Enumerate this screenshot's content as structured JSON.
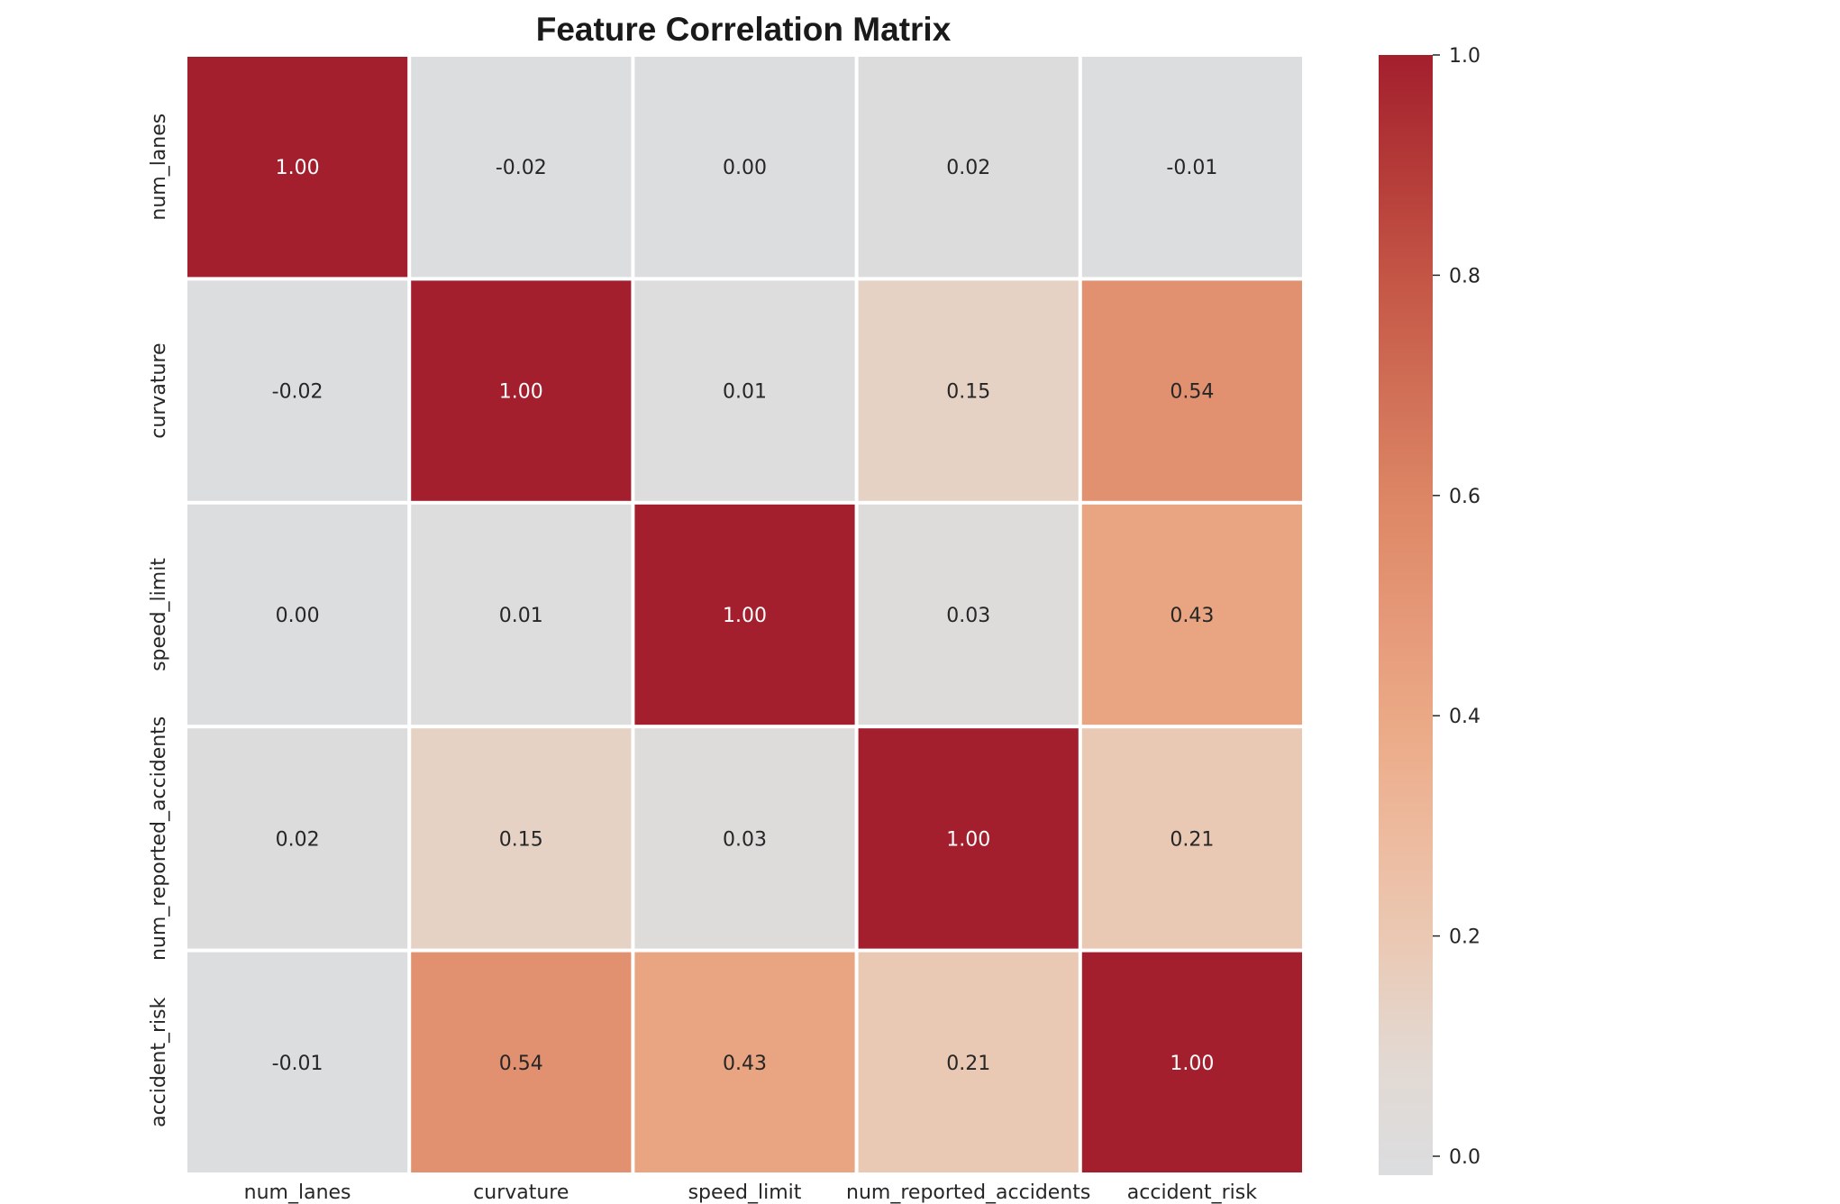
{
  "chart_data": {
    "type": "heatmap",
    "title": "Feature Correlation Matrix",
    "x_labels": [
      "num_lanes",
      "curvature",
      "speed_limit",
      "num_reported_accidents",
      "accident_risk"
    ],
    "y_labels": [
      "num_lanes",
      "curvature",
      "speed_limit",
      "num_reported_accidents",
      "accident_risk"
    ],
    "values": [
      [
        1.0,
        -0.02,
        0.0,
        0.02,
        -0.01
      ],
      [
        -0.02,
        1.0,
        0.01,
        0.15,
        0.54
      ],
      [
        0.0,
        0.01,
        1.0,
        0.03,
        0.43
      ],
      [
        0.02,
        0.15,
        0.03,
        1.0,
        0.21
      ],
      [
        -0.01,
        0.54,
        0.43,
        0.21,
        1.0
      ]
    ],
    "value_format": "0.00",
    "colormap": "coolwarm",
    "colorbar": {
      "range": [
        0.0,
        1.0
      ],
      "ticks": [
        0.0,
        0.2,
        0.4,
        0.6,
        0.8,
        1.0
      ],
      "tick_labels": [
        "0.0",
        "0.2",
        "0.4",
        "0.6",
        "0.8",
        "1.0"
      ]
    },
    "color_stops": [
      {
        "value": 0.0,
        "color": "#dcdddf"
      },
      {
        "value": 0.1,
        "color": "#e2d9d3"
      },
      {
        "value": 0.2,
        "color": "#eacab6"
      },
      {
        "value": 0.3,
        "color": "#edbb9f"
      },
      {
        "value": 0.4,
        "color": "#ebaa87"
      },
      {
        "value": 0.5,
        "color": "#e59877"
      },
      {
        "value": 0.6,
        "color": "#dd8766"
      },
      {
        "value": 0.7,
        "color": "#d06f56"
      },
      {
        "value": 0.8,
        "color": "#c45646"
      },
      {
        "value": 0.9,
        "color": "#b43a38"
      },
      {
        "value": 1.0,
        "color": "#a31f2d"
      }
    ],
    "grid": false,
    "cell_separator_color": "#ffffff"
  }
}
